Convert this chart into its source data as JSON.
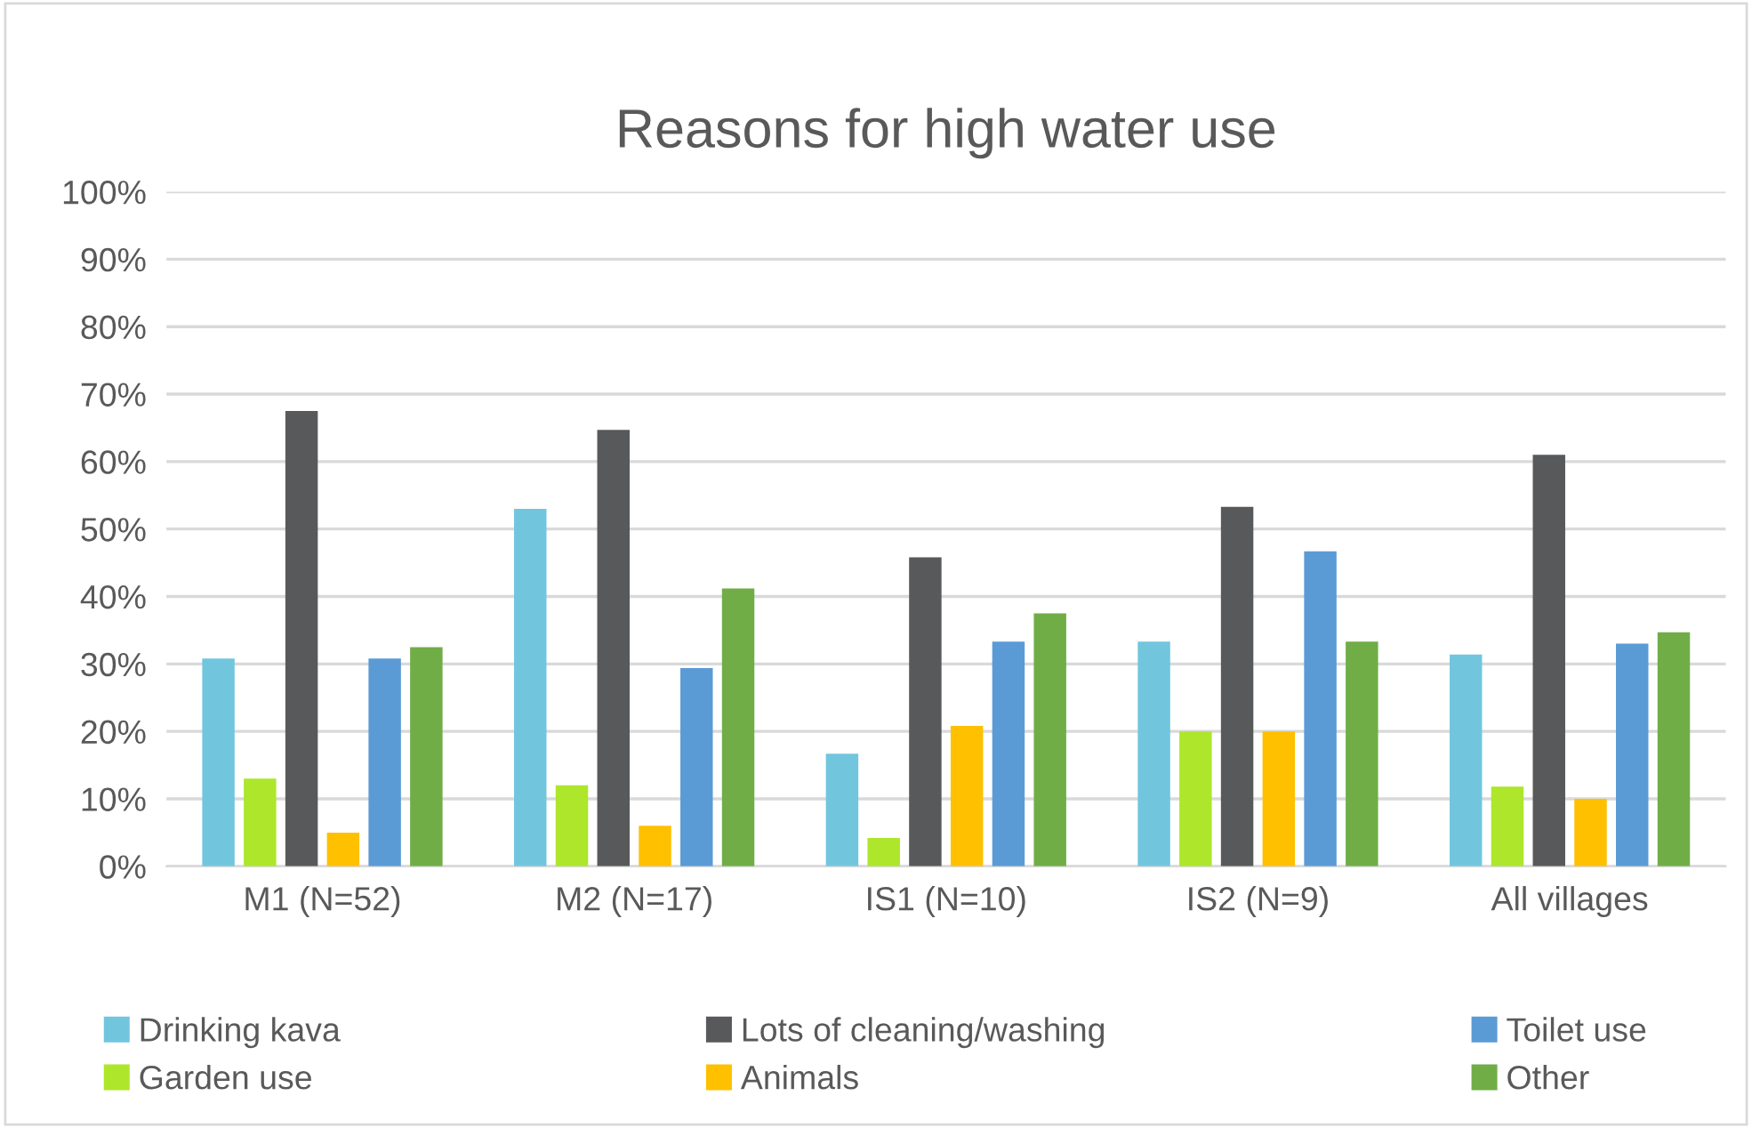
{
  "chart_data": {
    "type": "bar",
    "title": "Reasons for high water use",
    "categories": [
      "M1 (N=52)",
      "M2 (N=17)",
      "IS1 (N=10)",
      "IS2 (N=9)",
      "All villages"
    ],
    "series": [
      {
        "name": "Drinking kava",
        "color": "#71c6de",
        "values": [
          30.8,
          53,
          16.7,
          33.3,
          31.4
        ]
      },
      {
        "name": "Garden use",
        "color": "#ade62a",
        "values": [
          13,
          12,
          4.2,
          20,
          11.8
        ]
      },
      {
        "name": "Lots of cleaning/washing",
        "color": "#58595b",
        "values": [
          67.5,
          64.7,
          45.8,
          53.3,
          61
        ]
      },
      {
        "name": "Animals",
        "color": "#ffc000",
        "values": [
          5,
          6,
          20.8,
          20,
          10
        ]
      },
      {
        "name": "Toilet use",
        "color": "#5b9bd5",
        "values": [
          30.8,
          29.4,
          33.3,
          46.7,
          33
        ]
      },
      {
        "name": "Other",
        "color": "#70ad47",
        "values": [
          32.5,
          41.2,
          37.5,
          33.3,
          34.7
        ]
      }
    ],
    "ylim": [
      0,
      100
    ],
    "yticks": [
      {
        "value": 0,
        "label": "0%"
      },
      {
        "value": 10,
        "label": "10%"
      },
      {
        "value": 20,
        "label": "20%"
      },
      {
        "value": 30,
        "label": "30%"
      },
      {
        "value": 40,
        "label": "40%"
      },
      {
        "value": 50,
        "label": "50%"
      },
      {
        "value": 60,
        "label": "60%"
      },
      {
        "value": 70,
        "label": "70%"
      },
      {
        "value": 80,
        "label": "80%"
      },
      {
        "value": 90,
        "label": "90%"
      },
      {
        "value": 100,
        "label": "100%"
      }
    ],
    "grid": "y",
    "legend": "bottom"
  }
}
